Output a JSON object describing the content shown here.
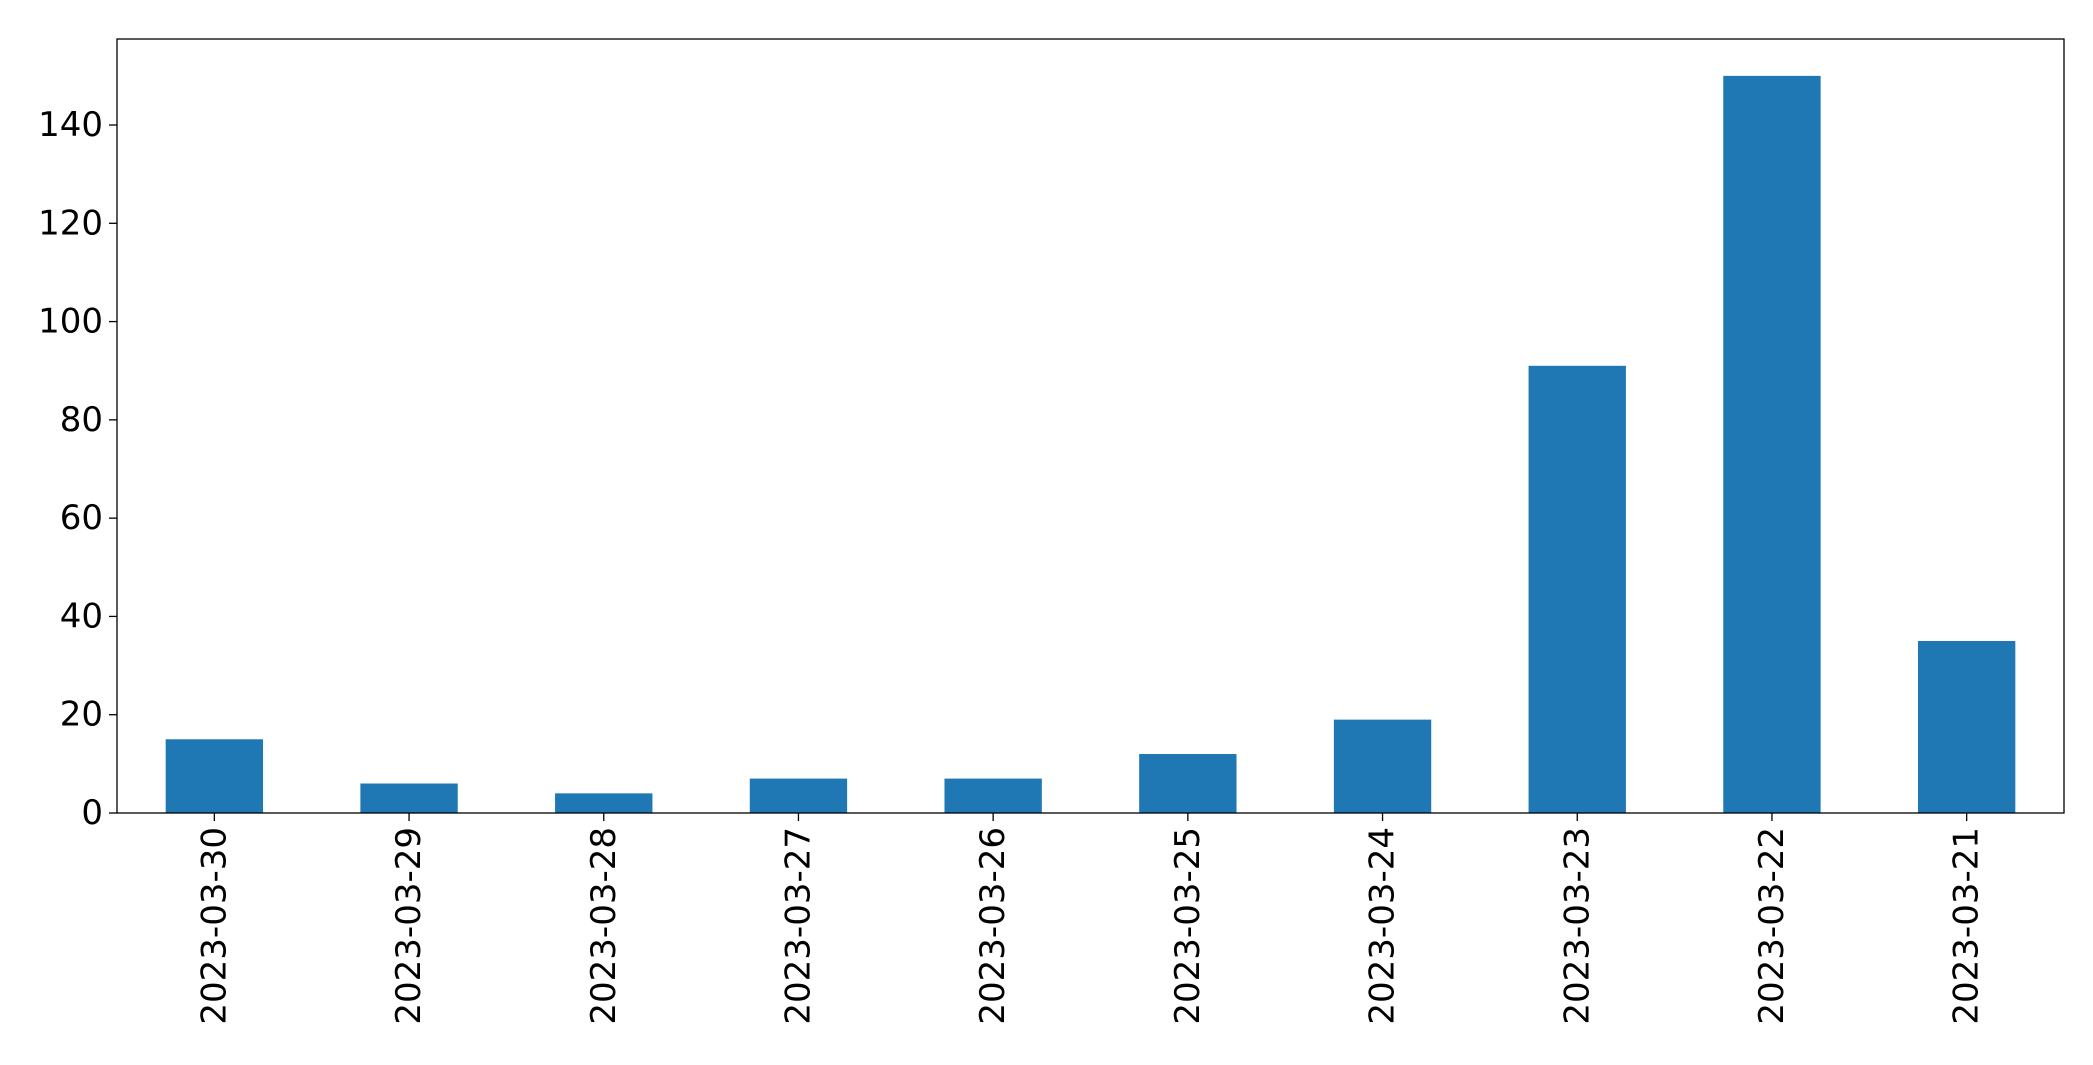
{
  "chart_data": {
    "type": "bar",
    "categories": [
      "2023-03-30",
      "2023-03-29",
      "2023-03-28",
      "2023-03-27",
      "2023-03-26",
      "2023-03-25",
      "2023-03-24",
      "2023-03-23",
      "2023-03-22",
      "2023-03-21"
    ],
    "values": [
      15,
      6,
      4,
      7,
      7,
      12,
      19,
      91,
      150,
      35
    ],
    "color": "#1f77b4",
    "ylim": [
      0,
      157.5
    ],
    "yticks": [
      0,
      20,
      40,
      60,
      80,
      100,
      120,
      140
    ],
    "grid": false
  }
}
